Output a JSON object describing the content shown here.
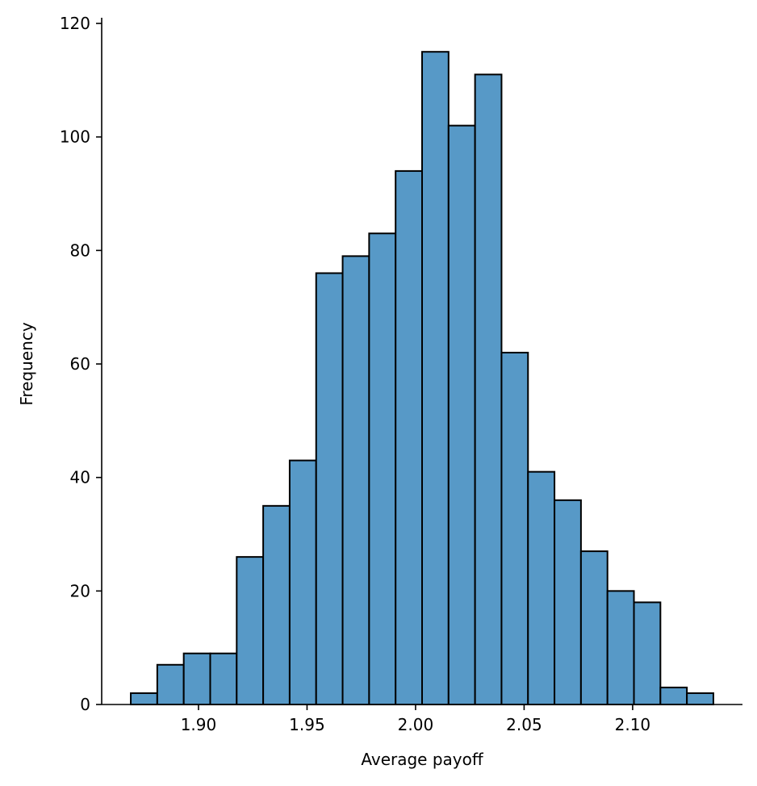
{
  "chart_data": {
    "type": "bar",
    "title": "",
    "xlabel": "Average payoff",
    "ylabel": "Frequency",
    "bin_start": 1.8688,
    "bin_width": 0.0122,
    "values": [
      2,
      7,
      9,
      9,
      26,
      35,
      43,
      76,
      79,
      83,
      94,
      115,
      102,
      111,
      62,
      41,
      36,
      27,
      20,
      18,
      3,
      2
    ],
    "xlim": [
      1.8554,
      2.1506
    ],
    "ylim": [
      0,
      121
    ],
    "xticks": [
      1.9,
      1.95,
      2.0,
      2.05,
      2.1
    ],
    "xtick_labels": [
      "1.90",
      "1.95",
      "2.00",
      "2.05",
      "2.10"
    ],
    "yticks": [
      0,
      20,
      40,
      60,
      80,
      100,
      120
    ],
    "ytick_labels": [
      "0",
      "20",
      "40",
      "60",
      "80",
      "100",
      "120"
    ],
    "grid": false,
    "bar_color": "#5799c7",
    "edge_color": "#000000"
  }
}
